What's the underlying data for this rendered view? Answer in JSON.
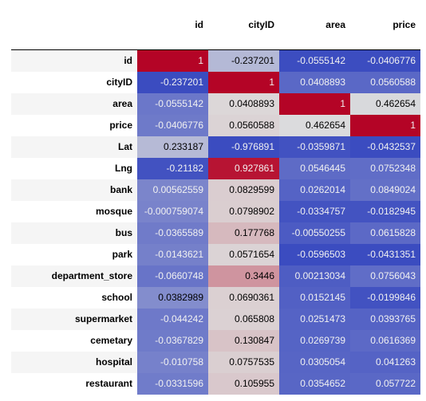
{
  "table": {
    "columns": [
      "id",
      "cityID",
      "area",
      "price"
    ],
    "rows": [
      {
        "label": "id",
        "values": [
          "1",
          "-0.237201",
          "-0.0555142",
          "-0.0406776"
        ]
      },
      {
        "label": "cityID",
        "values": [
          "-0.237201",
          "1",
          "0.0408893",
          "0.0560588"
        ]
      },
      {
        "label": "area",
        "values": [
          "-0.0555142",
          "0.0408893",
          "1",
          "0.462654"
        ]
      },
      {
        "label": "price",
        "values": [
          "-0.0406776",
          "0.0560588",
          "0.462654",
          "1"
        ]
      },
      {
        "label": "Lat",
        "values": [
          "0.233187",
          "-0.976891",
          "-0.0359871",
          "-0.0432537"
        ]
      },
      {
        "label": "Lng",
        "values": [
          "-0.21182",
          "0.927861",
          "0.0546445",
          "0.0752348"
        ]
      },
      {
        "label": "bank",
        "values": [
          "0.00562559",
          "0.0829599",
          "0.0262014",
          "0.0849024"
        ]
      },
      {
        "label": "mosque",
        "values": [
          "-0.000759074",
          "0.0798902",
          "-0.0334757",
          "-0.0182945"
        ]
      },
      {
        "label": "bus",
        "values": [
          "-0.0365589",
          "0.177768",
          "-0.00550255",
          "0.0615828"
        ]
      },
      {
        "label": "park",
        "values": [
          "-0.0143621",
          "0.0571654",
          "-0.0596503",
          "-0.0431351"
        ]
      },
      {
        "label": "department_store",
        "values": [
          "-0.0660748",
          "0.3446",
          "0.00213034",
          "0.0756043"
        ]
      },
      {
        "label": "school",
        "values": [
          "0.0382989",
          "0.0690361",
          "0.0152145",
          "-0.0199846"
        ]
      },
      {
        "label": "supermarket",
        "values": [
          "-0.044242",
          "0.065808",
          "0.0251473",
          "0.0393765"
        ]
      },
      {
        "label": "cemetary",
        "values": [
          "-0.0367829",
          "0.130847",
          "0.0269739",
          "0.0616369"
        ]
      },
      {
        "label": "hospital",
        "values": [
          "-0.010758",
          "0.0757535",
          "0.0305054",
          "0.041263"
        ]
      },
      {
        "label": "restaurant",
        "values": [
          "-0.0331596",
          "0.105955",
          "0.0354652",
          "0.057722"
        ]
      }
    ]
  },
  "colormap": {
    "name": "coolwarm",
    "low_color": "#3b4cc0",
    "mid_color": "#dddddd",
    "high_color": "#b40426",
    "light_text": "#f1f1f1",
    "dark_text": "#000000"
  }
}
